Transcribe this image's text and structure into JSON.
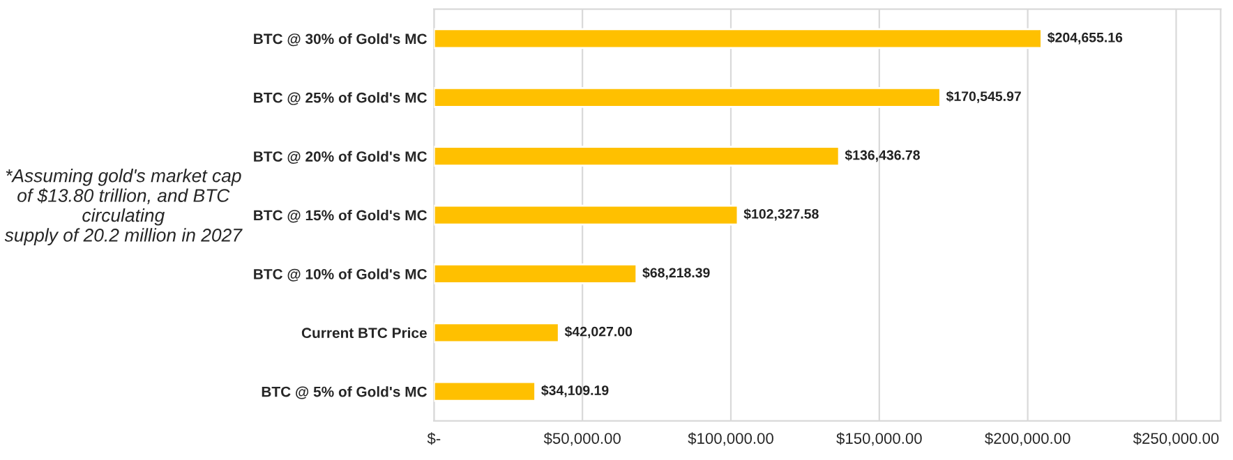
{
  "chart_data": {
    "type": "bar",
    "orientation": "horizontal",
    "categories": [
      "BTC @ 30% of Gold's MC",
      "BTC @ 25% of Gold's MC",
      "BTC @ 20% of Gold's MC",
      "BTC @ 15% of Gold's MC",
      "BTC @ 10% of Gold's MC",
      "Current BTC Price",
      "BTC @ 5% of Gold's MC"
    ],
    "values": [
      204655.16,
      170545.97,
      136436.78,
      102327.58,
      68218.39,
      42027.0,
      34109.19
    ],
    "value_labels": [
      "$204,655.16",
      "$170,545.97",
      "$136,436.78",
      "$102,327.58",
      "$68,218.39",
      "$42,027.00",
      "$34,109.19"
    ],
    "color": "#ffc000",
    "xlim": [
      0,
      265000
    ],
    "xticks": [
      {
        "value": 0,
        "label": "$-"
      },
      {
        "value": 50000,
        "label": "$50,000.00"
      },
      {
        "value": 100000,
        "label": "$100,000.00"
      },
      {
        "value": 150000,
        "label": "$150,000.00"
      },
      {
        "value": 200000,
        "label": "$200,000.00"
      },
      {
        "value": 250000,
        "label": "$250,000.00"
      }
    ],
    "grid": "x",
    "annotations": [
      "*Assuming gold's market cap of $13.80 trillion, and BTC circulating\nsupply of 20.2 million in 2027"
    ]
  }
}
